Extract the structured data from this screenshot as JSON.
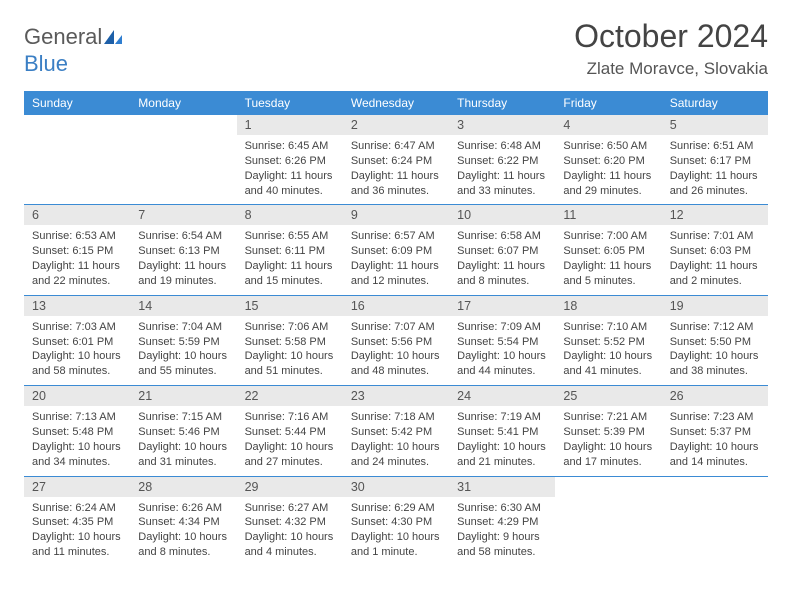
{
  "header": {
    "logo_part1": "General",
    "logo_part2": "Blue",
    "title": "October 2024",
    "location": "Zlate Moravce, Slovakia"
  },
  "colors": {
    "header_bg": "#3b8bd4",
    "header_text": "#ffffff",
    "day_strip_bg": "#e9e9e9",
    "rule": "#3b8bd4",
    "logo_blue": "#3b7fc4",
    "logo_gray": "#5a5a5a"
  },
  "weekdays": [
    "Sunday",
    "Monday",
    "Tuesday",
    "Wednesday",
    "Thursday",
    "Friday",
    "Saturday"
  ],
  "weeks": [
    [
      null,
      null,
      {
        "n": "1",
        "sr": "Sunrise: 6:45 AM",
        "ss": "Sunset: 6:26 PM",
        "dl1": "Daylight: 11 hours",
        "dl2": "and 40 minutes."
      },
      {
        "n": "2",
        "sr": "Sunrise: 6:47 AM",
        "ss": "Sunset: 6:24 PM",
        "dl1": "Daylight: 11 hours",
        "dl2": "and 36 minutes."
      },
      {
        "n": "3",
        "sr": "Sunrise: 6:48 AM",
        "ss": "Sunset: 6:22 PM",
        "dl1": "Daylight: 11 hours",
        "dl2": "and 33 minutes."
      },
      {
        "n": "4",
        "sr": "Sunrise: 6:50 AM",
        "ss": "Sunset: 6:20 PM",
        "dl1": "Daylight: 11 hours",
        "dl2": "and 29 minutes."
      },
      {
        "n": "5",
        "sr": "Sunrise: 6:51 AM",
        "ss": "Sunset: 6:17 PM",
        "dl1": "Daylight: 11 hours",
        "dl2": "and 26 minutes."
      }
    ],
    [
      {
        "n": "6",
        "sr": "Sunrise: 6:53 AM",
        "ss": "Sunset: 6:15 PM",
        "dl1": "Daylight: 11 hours",
        "dl2": "and 22 minutes."
      },
      {
        "n": "7",
        "sr": "Sunrise: 6:54 AM",
        "ss": "Sunset: 6:13 PM",
        "dl1": "Daylight: 11 hours",
        "dl2": "and 19 minutes."
      },
      {
        "n": "8",
        "sr": "Sunrise: 6:55 AM",
        "ss": "Sunset: 6:11 PM",
        "dl1": "Daylight: 11 hours",
        "dl2": "and 15 minutes."
      },
      {
        "n": "9",
        "sr": "Sunrise: 6:57 AM",
        "ss": "Sunset: 6:09 PM",
        "dl1": "Daylight: 11 hours",
        "dl2": "and 12 minutes."
      },
      {
        "n": "10",
        "sr": "Sunrise: 6:58 AM",
        "ss": "Sunset: 6:07 PM",
        "dl1": "Daylight: 11 hours",
        "dl2": "and 8 minutes."
      },
      {
        "n": "11",
        "sr": "Sunrise: 7:00 AM",
        "ss": "Sunset: 6:05 PM",
        "dl1": "Daylight: 11 hours",
        "dl2": "and 5 minutes."
      },
      {
        "n": "12",
        "sr": "Sunrise: 7:01 AM",
        "ss": "Sunset: 6:03 PM",
        "dl1": "Daylight: 11 hours",
        "dl2": "and 2 minutes."
      }
    ],
    [
      {
        "n": "13",
        "sr": "Sunrise: 7:03 AM",
        "ss": "Sunset: 6:01 PM",
        "dl1": "Daylight: 10 hours",
        "dl2": "and 58 minutes."
      },
      {
        "n": "14",
        "sr": "Sunrise: 7:04 AM",
        "ss": "Sunset: 5:59 PM",
        "dl1": "Daylight: 10 hours",
        "dl2": "and 55 minutes."
      },
      {
        "n": "15",
        "sr": "Sunrise: 7:06 AM",
        "ss": "Sunset: 5:58 PM",
        "dl1": "Daylight: 10 hours",
        "dl2": "and 51 minutes."
      },
      {
        "n": "16",
        "sr": "Sunrise: 7:07 AM",
        "ss": "Sunset: 5:56 PM",
        "dl1": "Daylight: 10 hours",
        "dl2": "and 48 minutes."
      },
      {
        "n": "17",
        "sr": "Sunrise: 7:09 AM",
        "ss": "Sunset: 5:54 PM",
        "dl1": "Daylight: 10 hours",
        "dl2": "and 44 minutes."
      },
      {
        "n": "18",
        "sr": "Sunrise: 7:10 AM",
        "ss": "Sunset: 5:52 PM",
        "dl1": "Daylight: 10 hours",
        "dl2": "and 41 minutes."
      },
      {
        "n": "19",
        "sr": "Sunrise: 7:12 AM",
        "ss": "Sunset: 5:50 PM",
        "dl1": "Daylight: 10 hours",
        "dl2": "and 38 minutes."
      }
    ],
    [
      {
        "n": "20",
        "sr": "Sunrise: 7:13 AM",
        "ss": "Sunset: 5:48 PM",
        "dl1": "Daylight: 10 hours",
        "dl2": "and 34 minutes."
      },
      {
        "n": "21",
        "sr": "Sunrise: 7:15 AM",
        "ss": "Sunset: 5:46 PM",
        "dl1": "Daylight: 10 hours",
        "dl2": "and 31 minutes."
      },
      {
        "n": "22",
        "sr": "Sunrise: 7:16 AM",
        "ss": "Sunset: 5:44 PM",
        "dl1": "Daylight: 10 hours",
        "dl2": "and 27 minutes."
      },
      {
        "n": "23",
        "sr": "Sunrise: 7:18 AM",
        "ss": "Sunset: 5:42 PM",
        "dl1": "Daylight: 10 hours",
        "dl2": "and 24 minutes."
      },
      {
        "n": "24",
        "sr": "Sunrise: 7:19 AM",
        "ss": "Sunset: 5:41 PM",
        "dl1": "Daylight: 10 hours",
        "dl2": "and 21 minutes."
      },
      {
        "n": "25",
        "sr": "Sunrise: 7:21 AM",
        "ss": "Sunset: 5:39 PM",
        "dl1": "Daylight: 10 hours",
        "dl2": "and 17 minutes."
      },
      {
        "n": "26",
        "sr": "Sunrise: 7:23 AM",
        "ss": "Sunset: 5:37 PM",
        "dl1": "Daylight: 10 hours",
        "dl2": "and 14 minutes."
      }
    ],
    [
      {
        "n": "27",
        "sr": "Sunrise: 6:24 AM",
        "ss": "Sunset: 4:35 PM",
        "dl1": "Daylight: 10 hours",
        "dl2": "and 11 minutes."
      },
      {
        "n": "28",
        "sr": "Sunrise: 6:26 AM",
        "ss": "Sunset: 4:34 PM",
        "dl1": "Daylight: 10 hours",
        "dl2": "and 8 minutes."
      },
      {
        "n": "29",
        "sr": "Sunrise: 6:27 AM",
        "ss": "Sunset: 4:32 PM",
        "dl1": "Daylight: 10 hours",
        "dl2": "and 4 minutes."
      },
      {
        "n": "30",
        "sr": "Sunrise: 6:29 AM",
        "ss": "Sunset: 4:30 PM",
        "dl1": "Daylight: 10 hours",
        "dl2": "and 1 minute."
      },
      {
        "n": "31",
        "sr": "Sunrise: 6:30 AM",
        "ss": "Sunset: 4:29 PM",
        "dl1": "Daylight: 9 hours",
        "dl2": "and 58 minutes."
      },
      null,
      null
    ]
  ]
}
